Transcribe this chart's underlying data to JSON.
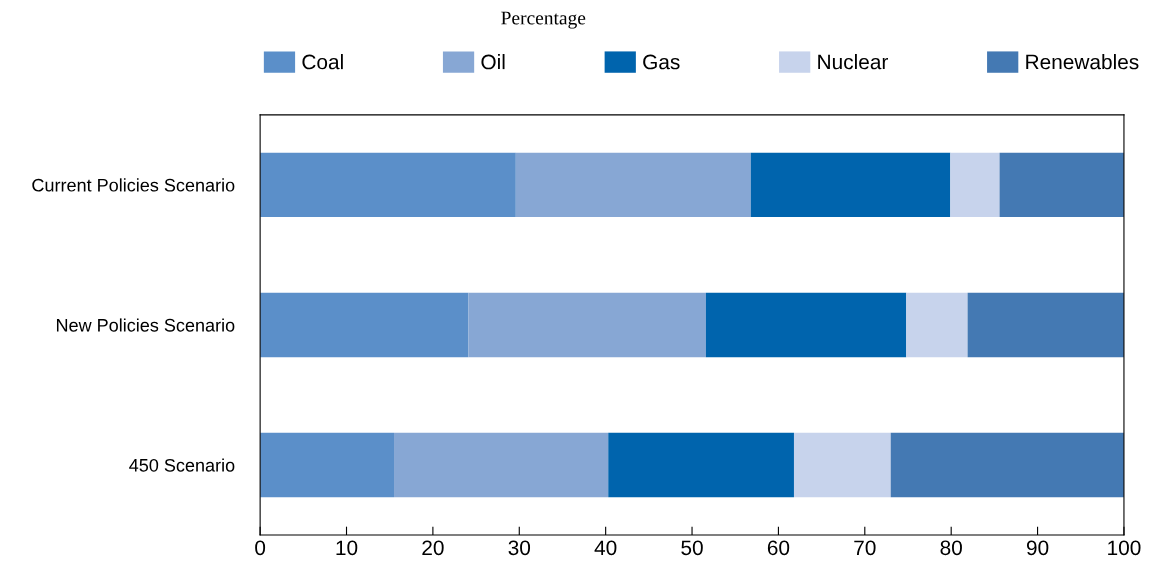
{
  "chart_data": {
    "type": "bar",
    "orientation": "horizontal",
    "stacked": true,
    "title": "Percentage",
    "categories": [
      "Current Policies Scenario",
      "New Policies Scenario",
      "450 Scenario"
    ],
    "series": [
      {
        "name": "Coal",
        "color": "#5b8fc9",
        "values": [
          29.6,
          24.1,
          15.5
        ]
      },
      {
        "name": "Oil",
        "color": "#87a7d4",
        "values": [
          27.2,
          27.5,
          24.8
        ]
      },
      {
        "name": "Gas",
        "color": "#0064ad",
        "values": [
          23.1,
          23.2,
          21.5
        ]
      },
      {
        "name": "Nuclear",
        "color": "#c7d3ec",
        "values": [
          5.7,
          7.1,
          11.2
        ]
      },
      {
        "name": "Renewables",
        "color": "#4479b3",
        "values": [
          14.4,
          18.1,
          27.0
        ]
      }
    ],
    "xlim": [
      0,
      100
    ],
    "xticks": [
      0,
      10,
      20,
      30,
      40,
      50,
      60,
      70,
      80,
      90,
      100
    ],
    "grid": false,
    "legend": "top"
  }
}
